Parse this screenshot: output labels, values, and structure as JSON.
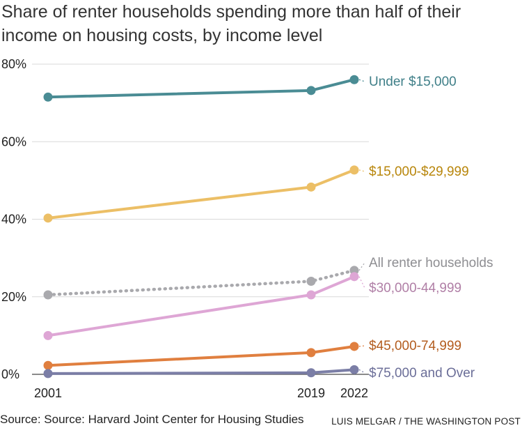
{
  "header": {
    "title": "Share of renter households spending more than half of their income on housing costs, by income level"
  },
  "footer": {
    "source": "Source: Source: Harvard Joint Center for Housing Studies",
    "credit": "LUIS MELGAR / THE WASHINGTON POST"
  },
  "chart_data": {
    "type": "line",
    "title": "Share of renter households spending more than half of their income on housing costs, by income level",
    "xlabel": "",
    "ylabel": "",
    "x": [
      2001,
      2019,
      2022
    ],
    "x_tick_labels": [
      "2001",
      "2019",
      "2022"
    ],
    "ylim": [
      0,
      80
    ],
    "y_ticks": [
      0,
      20,
      40,
      60,
      80
    ],
    "y_tick_labels": [
      "0%",
      "20%",
      "40%",
      "60%",
      "80%"
    ],
    "grid": true,
    "legend": "direct labels at right end of lines",
    "series": [
      {
        "name": "Under $15,000",
        "values": [
          71.5,
          73.2,
          76.0
        ],
        "color": "#4a8c94",
        "dashed": false
      },
      {
        "name": "$15,000-$29,999",
        "values": [
          40.3,
          48.3,
          52.7
        ],
        "color": "#ecbf66",
        "dashed": false
      },
      {
        "name": "All renter households",
        "values": [
          20.5,
          24.0,
          26.8
        ],
        "color": "#a9a9ad",
        "dashed": true
      },
      {
        "name": "$30,000-44,999",
        "values": [
          10.0,
          20.5,
          25.2
        ],
        "color": "#dea6d5",
        "dashed": false
      },
      {
        "name": "$45,000-74,999",
        "values": [
          2.3,
          5.6,
          7.2
        ],
        "color": "#e07f3f",
        "dashed": false
      },
      {
        "name": "$75,000 and Over",
        "values": [
          0.2,
          0.4,
          1.2
        ],
        "color": "#7b7ea6",
        "dashed": false
      }
    ],
    "end_labels": [
      {
        "text": "Under $15,000",
        "color": "#3f7f88"
      },
      {
        "text": "$15,000-$29,999",
        "color": "#b8860b"
      },
      {
        "text": "All renter households",
        "color": "#8e8e92"
      },
      {
        "text": "$30,000-44,999",
        "color": "#b07fa6"
      },
      {
        "text": "$45,000-74,999",
        "color": "#b35c1e"
      },
      {
        "text": "$75,000 and Over",
        "color": "#6b6e98"
      }
    ]
  }
}
